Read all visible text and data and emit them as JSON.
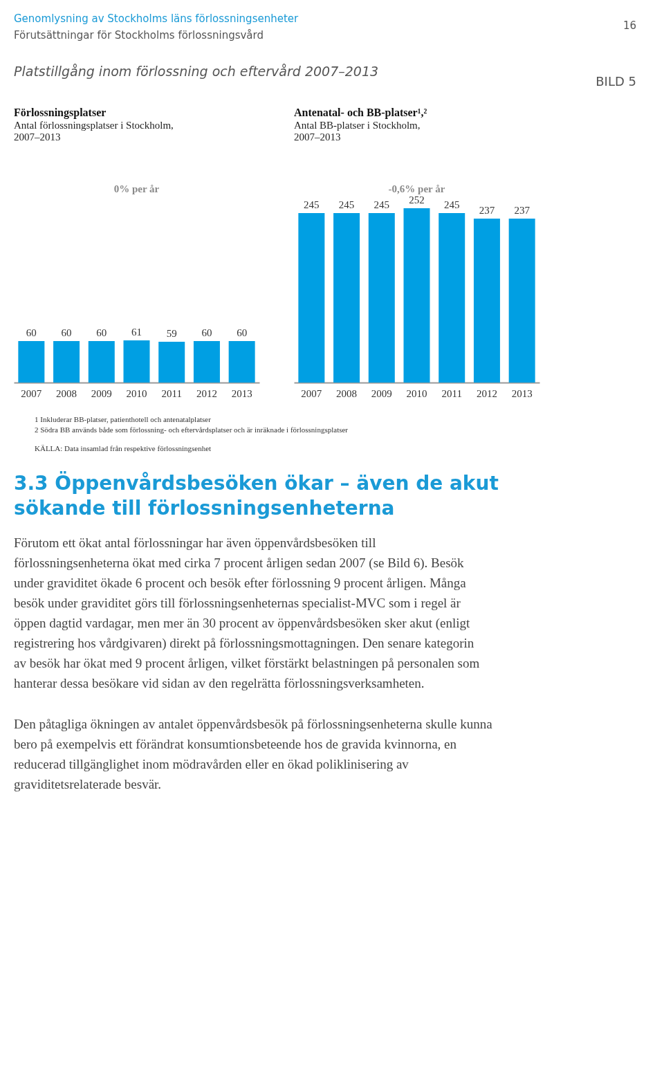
{
  "chart_data": [
    {
      "type": "other",
      "title": "Platstillgång inom förlossning och eftervård 2007–2013",
      "annotations": [
        "Genomlysning av Stockholms läns förlossningsenheter",
        "Förutsättningar för Stockholms förlossningsvård",
        "16",
        "BILD 5"
      ]
    },
    {
      "type": "bar",
      "title": "Förlossningsplatser",
      "subtitle": "Antal förlossningsplatser i Stockholm, 2007–2013",
      "categories": [
        "2007",
        "2008",
        "2009",
        "2010",
        "2011",
        "2012",
        "2013"
      ],
      "values": [
        60,
        60,
        60,
        61,
        59,
        60,
        60
      ],
      "color": "#009fe3",
      "data_labels": true,
      "annotations": [
        "0% per år"
      ]
    },
    {
      "type": "bar",
      "title": "Antenatal- och BB-platser¹,²",
      "subtitle": "Antal BB-platser i Stockholm, 2007–2013",
      "categories": [
        "2007",
        "2008",
        "2009",
        "2010",
        "2011",
        "2012",
        "2013"
      ],
      "values": [
        245,
        245,
        245,
        252,
        245,
        237,
        237
      ],
      "color": "#009fe3",
      "data_labels": true,
      "annotations": [
        "-0,6% per år"
      ]
    },
    {
      "type": "other",
      "annotations": [
        "1 Inkluderar BB-platser, patienthotell och antenatalplatser",
        "2 Södra BB används både som förlossning- och eftervårdsplatser och är inräknade i förlossningsplatser",
        "KÄLLA: Data insamlad från respektive förlossningsenhet"
      ]
    },
    {
      "type": "other",
      "title": "3.3 Öppenvårdsbesöken ökar – även de akut sökande till förlossningsenheterna",
      "annotations": [
        "Förutom ett ökat antal förlossningar har även öppenvårdsbesöken till förlossningsenheterna ökat med cirka 7 procent årligen sedan 2007 (se Bild 6). Besök under graviditet ökade 6 procent och besök efter förlossning 9 procent årligen. Många besök under graviditet görs till förlossningsenheternas specialist-MVC som i regel är öppen dagtid vardagar, men mer än 30 procent av öppenvårdsbesöken sker akut (enligt registrering hos vårdgivaren) direkt på förlossningsmottagningen. Den senare kategorin av besök har ökat med 9 procent årligen, vilket förstärkt belastningen på personalen som hanterar dessa besökare vid sidan av den regelrätta förlossningsverksamheten.",
        "Den påtagliga ökningen av antalet öppenvårdsbesök på förlossningsenheterna skulle kunna bero på exempelvis ett förändrat konsumtionsbeteende hos de gravida kvinnorna, en reducerad tillgänglighet inom mödravården eller en ökad poliklinisering av graviditetsrelaterade besvär."
      ]
    }
  ]
}
